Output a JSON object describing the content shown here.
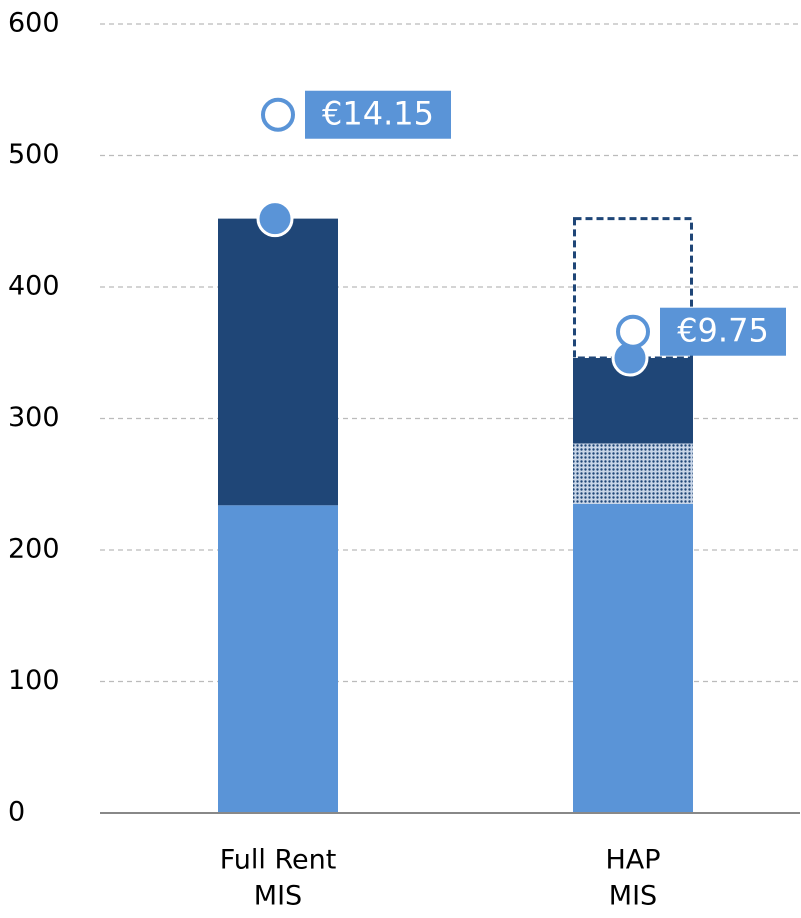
{
  "chart_data": {
    "type": "bar",
    "stacked": true,
    "categories": [
      [
        "Full Rent",
        "MIS"
      ],
      [
        "HAP",
        "MIS"
      ]
    ],
    "series": [
      {
        "color": "#5a94d7",
        "style": "solid",
        "values": [
          234,
          235
        ]
      },
      {
        "color": "#1f4677",
        "style": "dotted",
        "values": [
          null,
          46
        ]
      },
      {
        "color": "#1f4677",
        "style": "solid",
        "values": [
          218,
          65
        ]
      },
      {
        "color": "#1f4677",
        "style": "dashed",
        "values": [
          null,
          106
        ]
      }
    ],
    "markers": [
      {
        "color": "#5a94d7",
        "style": "filled",
        "values": [
          452,
          346
        ]
      },
      {
        "color": "#5a94d7",
        "style": "open",
        "values": [
          531,
          366
        ]
      }
    ],
    "annotations": [
      "€14.15",
      "€9.75"
    ],
    "ylim": [
      0,
      600
    ],
    "yticks": [
      0,
      100,
      200,
      300,
      400,
      500,
      600
    ],
    "grid": true
  }
}
